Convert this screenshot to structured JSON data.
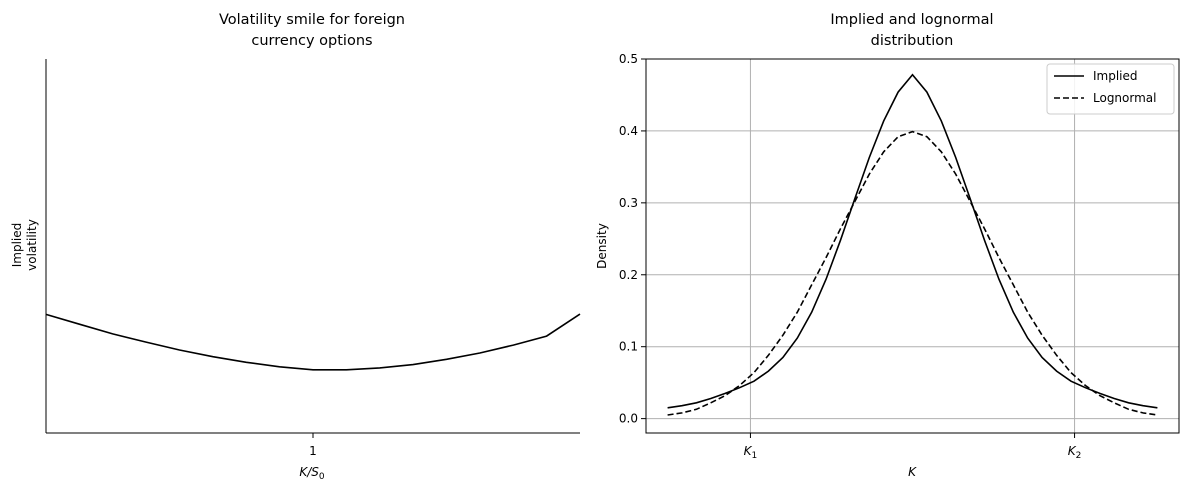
{
  "chart_data": [
    {
      "type": "line",
      "title": [
        "Volatility smile for foreign",
        "currency options"
      ],
      "xlabel": {
        "main": "K/S",
        "sub": "0"
      },
      "ylabel": [
        "Implied",
        "volatility"
      ],
      "xlim": [
        0.6,
        1.4
      ],
      "ylim": [
        0.0,
        1.0
      ],
      "xticks": [
        {
          "value": 1.0,
          "label": "1"
        }
      ],
      "yticks": [],
      "grid": false,
      "spines": [
        "left",
        "bottom"
      ],
      "series": [
        {
          "style": "solid",
          "color": "#000000",
          "x": [
            0.6,
            0.65,
            0.7,
            0.75,
            0.8,
            0.85,
            0.9,
            0.95,
            1.0,
            1.05,
            1.1,
            1.15,
            1.2,
            1.25,
            1.3,
            1.35,
            1.4
          ],
          "y": [
            0.317,
            0.291,
            0.265,
            0.243,
            0.222,
            0.204,
            0.189,
            0.177,
            0.169,
            0.169,
            0.174,
            0.183,
            0.197,
            0.214,
            0.235,
            0.259,
            0.318
          ]
        }
      ]
    },
    {
      "type": "line",
      "title": [
        "Implied and lognormal",
        "distribution"
      ],
      "xlabel": "K",
      "ylabel": "Density",
      "xlim": [
        -3.7,
        3.7
      ],
      "ylim": [
        -0.02,
        0.5
      ],
      "xticks": [
        {
          "value": -2.25,
          "main": "K",
          "sub": "1"
        },
        {
          "value": 2.25,
          "main": "K",
          "sub": "2"
        }
      ],
      "yticks": [
        0.0,
        0.1,
        0.2,
        0.3,
        0.4,
        0.5
      ],
      "ytick_labels": [
        "0.0",
        "0.1",
        "0.2",
        "0.3",
        "0.4",
        "0.5"
      ],
      "grid": true,
      "legend": {
        "position": "top-right",
        "entries": [
          "Implied",
          "Lognormal"
        ]
      },
      "series": [
        {
          "name": "Implied",
          "style": "solid",
          "color": "#000000",
          "x": [
            -3.4,
            -3.2,
            -3.0,
            -2.8,
            -2.6,
            -2.4,
            -2.2,
            -2.0,
            -1.8,
            -1.6,
            -1.4,
            -1.2,
            -1.0,
            -0.8,
            -0.6,
            -0.4,
            -0.2,
            0.0,
            0.2,
            0.4,
            0.6,
            0.8,
            1.0,
            1.2,
            1.4,
            1.6,
            1.8,
            2.0,
            2.2,
            2.4,
            2.6,
            2.8,
            3.0,
            3.2,
            3.4
          ],
          "y": [
            0.015,
            0.018,
            0.022,
            0.028,
            0.035,
            0.043,
            0.052,
            0.066,
            0.085,
            0.112,
            0.148,
            0.194,
            0.248,
            0.306,
            0.363,
            0.414,
            0.454,
            0.478,
            0.454,
            0.414,
            0.363,
            0.306,
            0.248,
            0.194,
            0.148,
            0.112,
            0.085,
            0.066,
            0.052,
            0.043,
            0.035,
            0.028,
            0.022,
            0.018,
            0.015
          ]
        },
        {
          "name": "Lognormal",
          "style": "dashed",
          "color": "#000000",
          "x": [
            -3.4,
            -3.2,
            -3.0,
            -2.8,
            -2.6,
            -2.4,
            -2.2,
            -2.0,
            -1.8,
            -1.6,
            -1.4,
            -1.2,
            -1.0,
            -0.8,
            -0.6,
            -0.4,
            -0.2,
            0.0,
            0.2,
            0.4,
            0.6,
            0.8,
            1.0,
            1.2,
            1.4,
            1.6,
            1.8,
            2.0,
            2.2,
            2.4,
            2.6,
            2.8,
            3.0,
            3.2,
            3.4
          ],
          "y": [
            0.005,
            0.008,
            0.013,
            0.022,
            0.032,
            0.046,
            0.064,
            0.088,
            0.116,
            0.148,
            0.186,
            0.224,
            0.264,
            0.302,
            0.34,
            0.371,
            0.392,
            0.399,
            0.392,
            0.371,
            0.34,
            0.302,
            0.264,
            0.224,
            0.186,
            0.148,
            0.116,
            0.088,
            0.064,
            0.046,
            0.032,
            0.022,
            0.013,
            0.008,
            0.005
          ]
        }
      ]
    }
  ]
}
